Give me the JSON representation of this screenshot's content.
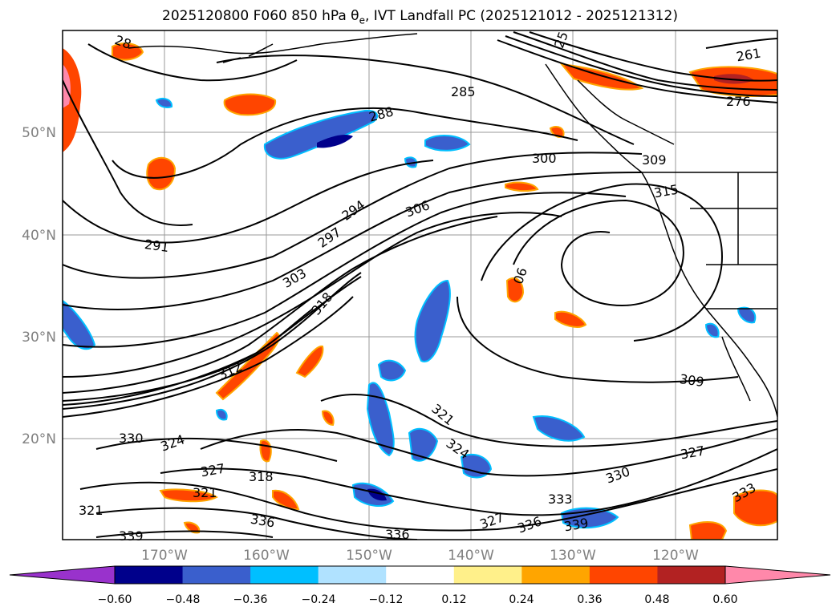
{
  "title": {
    "prefix": "2025120800 F060 850 hPa θ",
    "sub": "e",
    "suffix": ", IVT Landfall PC (2025121012 - 2025121312)"
  },
  "map": {
    "lon_labels": [
      "170°W",
      "160°W",
      "150°W",
      "140°W",
      "130°W",
      "120°W"
    ],
    "lat_labels": [
      "50°N",
      "40°N",
      "30°N",
      "20°N"
    ],
    "contour_labels": [
      "285",
      "288",
      "291",
      "294",
      "297",
      "300",
      "303",
      "306",
      "309",
      "315",
      "318",
      "321",
      "324",
      "327",
      "330",
      "333",
      "336",
      "339",
      "261",
      "276",
      "25",
      "28",
      "312",
      "06"
    ]
  },
  "colorbar": {
    "colors": [
      "#9932cc",
      "#00008b",
      "#3a5fcd",
      "#00bfff",
      "#b0e2ff",
      "#ffffff",
      "#fff08a",
      "#ffa500",
      "#ff4500",
      "#b22222",
      "#ff88aa"
    ],
    "tick_labels": [
      "−0.60",
      "−0.48",
      "−0.36",
      "−0.24",
      "−0.12",
      "0.12",
      "0.24",
      "0.36",
      "0.48",
      "0.60"
    ]
  }
}
